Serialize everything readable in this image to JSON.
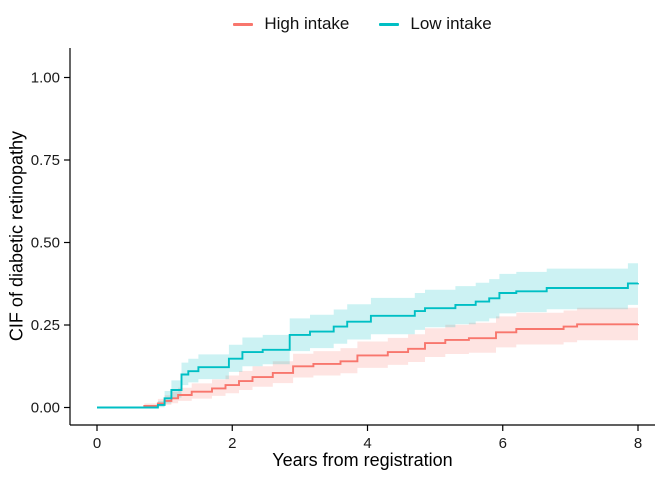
{
  "chart_data": {
    "type": "line",
    "subtype": "step-function-with-confidence-bands",
    "title": "",
    "xlabel": "Years from registration",
    "ylabel": "CIF of diabetic retinopathy",
    "xlim": [
      0,
      8.25
    ],
    "ylim": [
      0,
      1.0
    ],
    "grid": false,
    "legend_position": "top-center",
    "band_opacity": 0.2,
    "axis_color": "#000000",
    "tick_label_color": "#1a1a1a",
    "x_ticks": [
      {
        "v": 0,
        "label": "0"
      },
      {
        "v": 2,
        "label": "2"
      },
      {
        "v": 4,
        "label": "4"
      },
      {
        "v": 6,
        "label": "6"
      },
      {
        "v": 8,
        "label": "8"
      }
    ],
    "y_ticks": [
      {
        "v": 0.0,
        "label": "0.00"
      },
      {
        "v": 0.25,
        "label": "0.25"
      },
      {
        "v": 0.5,
        "label": "0.50"
      },
      {
        "v": 0.75,
        "label": "0.75"
      },
      {
        "v": 1.0,
        "label": "1.00"
      }
    ],
    "point_format": [
      "years_from_registration",
      "cif_estimate",
      "ci_lower",
      "ci_upper"
    ],
    "series": [
      {
        "name": "High intake",
        "color": "#F8766D",
        "points": [
          [
            0.0,
            0.0,
            0.0,
            0.0
          ],
          [
            0.7,
            0.005,
            0.001,
            0.012
          ],
          [
            0.9,
            0.012,
            0.004,
            0.026
          ],
          [
            1.0,
            0.02,
            0.008,
            0.037
          ],
          [
            1.1,
            0.028,
            0.013,
            0.048
          ],
          [
            1.2,
            0.038,
            0.02,
            0.06
          ],
          [
            1.4,
            0.048,
            0.027,
            0.073
          ],
          [
            1.7,
            0.058,
            0.035,
            0.085
          ],
          [
            1.9,
            0.068,
            0.043,
            0.097
          ],
          [
            2.1,
            0.08,
            0.053,
            0.111
          ],
          [
            2.3,
            0.092,
            0.063,
            0.125
          ],
          [
            2.6,
            0.105,
            0.074,
            0.14
          ],
          [
            2.9,
            0.125,
            0.091,
            0.163
          ],
          [
            3.2,
            0.132,
            0.097,
            0.171
          ],
          [
            3.6,
            0.14,
            0.104,
            0.18
          ],
          [
            3.85,
            0.158,
            0.12,
            0.2
          ],
          [
            4.3,
            0.168,
            0.129,
            0.211
          ],
          [
            4.6,
            0.178,
            0.138,
            0.222
          ],
          [
            4.85,
            0.195,
            0.153,
            0.24
          ],
          [
            5.15,
            0.205,
            0.162,
            0.251
          ],
          [
            5.5,
            0.21,
            0.166,
            0.257
          ],
          [
            5.9,
            0.228,
            0.182,
            0.276
          ],
          [
            6.2,
            0.238,
            0.191,
            0.287
          ],
          [
            6.9,
            0.245,
            0.198,
            0.294
          ],
          [
            7.1,
            0.252,
            0.204,
            0.302
          ],
          [
            8.0,
            0.253,
            0.205,
            0.303
          ]
        ]
      },
      {
        "name": "Low intake",
        "color": "#00BFC4",
        "points": [
          [
            0.0,
            0.0,
            0.0,
            0.0
          ],
          [
            0.9,
            0.008,
            0.001,
            0.02
          ],
          [
            1.0,
            0.028,
            0.012,
            0.05
          ],
          [
            1.1,
            0.053,
            0.03,
            0.082
          ],
          [
            1.25,
            0.1,
            0.068,
            0.136
          ],
          [
            1.35,
            0.11,
            0.076,
            0.148
          ],
          [
            1.5,
            0.122,
            0.086,
            0.161
          ],
          [
            1.95,
            0.148,
            0.108,
            0.19
          ],
          [
            2.15,
            0.168,
            0.125,
            0.212
          ],
          [
            2.45,
            0.175,
            0.131,
            0.22
          ],
          [
            2.85,
            0.22,
            0.171,
            0.27
          ],
          [
            3.15,
            0.23,
            0.18,
            0.281
          ],
          [
            3.5,
            0.245,
            0.193,
            0.297
          ],
          [
            3.7,
            0.26,
            0.206,
            0.313
          ],
          [
            4.05,
            0.278,
            0.222,
            0.332
          ],
          [
            4.7,
            0.292,
            0.235,
            0.347
          ],
          [
            4.85,
            0.301,
            0.243,
            0.357
          ],
          [
            5.3,
            0.311,
            0.252,
            0.368
          ],
          [
            5.6,
            0.321,
            0.261,
            0.378
          ],
          [
            5.8,
            0.331,
            0.27,
            0.389
          ],
          [
            5.95,
            0.347,
            0.285,
            0.405
          ],
          [
            6.2,
            0.352,
            0.289,
            0.411
          ],
          [
            6.65,
            0.362,
            0.298,
            0.421
          ],
          [
            7.85,
            0.376,
            0.311,
            0.437
          ],
          [
            8.0,
            0.377,
            0.312,
            0.438
          ]
        ]
      }
    ]
  }
}
